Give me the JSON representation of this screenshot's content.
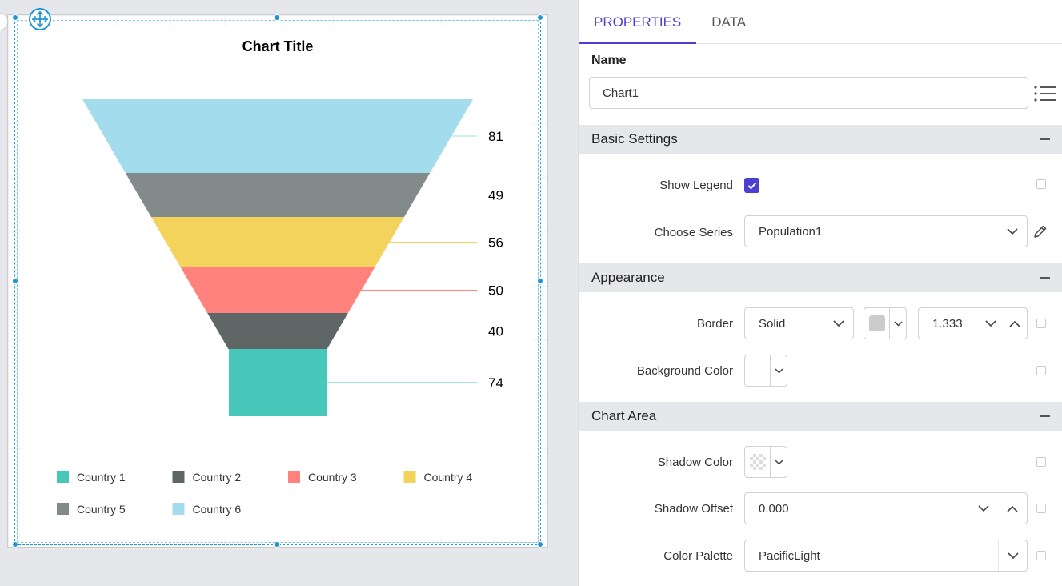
{
  "chart_data": {
    "type": "funnel",
    "title": "Chart Title",
    "categories": [
      "Country 6",
      "Country 5",
      "Country 4",
      "Country 3",
      "Country 2",
      "Country 1"
    ],
    "values": [
      81,
      49,
      56,
      50,
      40,
      74
    ],
    "colors": [
      "#a3dcec",
      "#828a8a",
      "#f3d35b",
      "#ff837c",
      "#5e6666",
      "#46c7b9"
    ],
    "legend": [
      {
        "label": "Country 1",
        "color": "#46c7b9"
      },
      {
        "label": "Country 2",
        "color": "#5e6666"
      },
      {
        "label": "Country 3",
        "color": "#ff837c"
      },
      {
        "label": "Country 4",
        "color": "#f3d35b"
      },
      {
        "label": "Country 5",
        "color": "#828a8a"
      },
      {
        "label": "Country 6",
        "color": "#a3dcec"
      }
    ],
    "legend_position": "bottom"
  },
  "tabs": [
    {
      "label": "PROPERTIES",
      "active": true
    },
    {
      "label": "DATA",
      "active": false
    }
  ],
  "name": {
    "label": "Name",
    "value": "Chart1"
  },
  "sections": {
    "basic": {
      "title": "Basic Settings",
      "show_legend_label": "Show Legend",
      "show_legend_checked": true,
      "choose_series_label": "Choose Series",
      "choose_series_value": "Population1"
    },
    "appearance": {
      "title": "Appearance",
      "border_label": "Border",
      "border_style": "Solid",
      "border_color": "#cccccc",
      "border_width": "1.333",
      "bg_label": "Background Color",
      "bg_color": "#ffffff"
    },
    "chart_area": {
      "title": "Chart Area",
      "shadow_color_label": "Shadow Color",
      "shadow_offset_label": "Shadow Offset",
      "shadow_offset_value": "0.000",
      "palette_label": "Color Palette",
      "palette_value": "PacificLight"
    }
  },
  "colors": {
    "accent": "#4d3fd1",
    "selection": "#1f95d6"
  }
}
